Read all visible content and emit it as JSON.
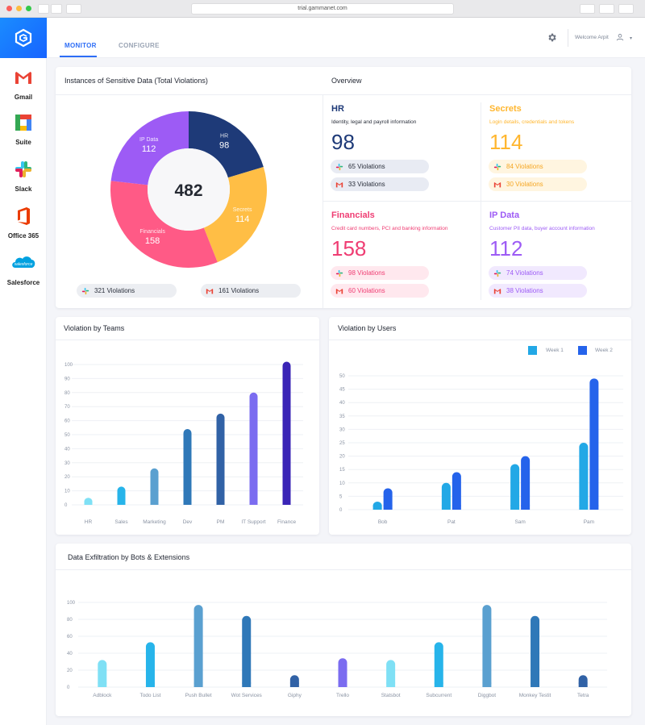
{
  "browser": {
    "url": "trial.gammanet.com"
  },
  "sidebar": {
    "apps": [
      {
        "label": "Gmail",
        "icon": "gmail-icon"
      },
      {
        "label": "Suite",
        "icon": "gsuite-icon"
      },
      {
        "label": "Slack",
        "icon": "slack-icon"
      },
      {
        "label": "Office 365",
        "icon": "office365-icon"
      },
      {
        "label": "Salesforce",
        "icon": "salesforce-icon"
      }
    ],
    "salesforce_logo_text": "salesforce"
  },
  "header": {
    "tabs": [
      {
        "label": "MONITOR",
        "active": true
      },
      {
        "label": "CONFIGURE",
        "active": false
      }
    ],
    "welcome": "Welcome Arpit",
    "caret": "▾"
  },
  "sensitive": {
    "title": "Instances of Sensitive Data (Total Violations)",
    "total": "482",
    "segments": [
      {
        "name": "HR",
        "value": 98,
        "color": "#1e3a78"
      },
      {
        "name": "Secrets",
        "value": 114,
        "color": "#ffbe45"
      },
      {
        "name": "Financials",
        "value": 158,
        "color": "#ff5a86"
      },
      {
        "name": "IP Data",
        "value": 112,
        "color": "#9d5bf5"
      }
    ],
    "pills": [
      {
        "icon": "slack-icon",
        "text": "321 Violations"
      },
      {
        "icon": "gmail-icon",
        "text": "161 Violations"
      }
    ]
  },
  "overview": {
    "title": "Overview",
    "categories": [
      {
        "name": "HR",
        "desc": "Identity, legal and payroll information",
        "total": "98",
        "color": "#1e3a78",
        "pill_bg": "#e8ebf3",
        "pill_text": "#1e3a78",
        "slack": "65 Violations",
        "gmail": "33 Violations"
      },
      {
        "name": "Secrets",
        "desc": "Login details, credentials and tokens",
        "total": "114",
        "color": "#ffb62e",
        "pill_bg": "#fff5e0",
        "pill_text": "#f5a623",
        "slack": "84 Violations",
        "gmail": "30 Violations"
      },
      {
        "name": "Financials",
        "desc": "Credit card numbers, PCI and banking information",
        "total": "158",
        "color": "#ef3d73",
        "pill_bg": "#ffe8ee",
        "pill_text": "#ef3d73",
        "slack": "98 Violations",
        "gmail": "60 Violations"
      },
      {
        "name": "IP Data",
        "desc": "Customer PII data, buyer account information",
        "total": "112",
        "color": "#9d5bf5",
        "pill_bg": "#f1e9fe",
        "pill_text": "#9d5bf5",
        "slack": "74 Violations",
        "gmail": "38 Violations"
      }
    ]
  },
  "teams": {
    "title": "Violation by Teams",
    "chart_data": {
      "type": "bar",
      "categories": [
        "HR",
        "Sales",
        "Marketing",
        "Dev",
        "PM",
        "IT Support",
        "Finance"
      ],
      "values": [
        5,
        13,
        26,
        54,
        65,
        80,
        102
      ],
      "colors": [
        "#7fe0f5",
        "#27b4ea",
        "#5aa0d0",
        "#2f78b8",
        "#3162a6",
        "#7b6cf0",
        "#3a24b6"
      ],
      "yticks": [
        0,
        10,
        20,
        30,
        40,
        50,
        60,
        70,
        80,
        90,
        100
      ],
      "ylim": [
        0,
        100
      ]
    }
  },
  "users": {
    "title": "Violation by Users",
    "chart_data": {
      "type": "bar",
      "categories": [
        "Bob",
        "Pat",
        "Sam",
        "Pam"
      ],
      "series": [
        {
          "name": "Week 1",
          "values": [
            3,
            10,
            17,
            25
          ],
          "color": "#22a8e6"
        },
        {
          "name": "Week 2",
          "values": [
            8,
            14,
            20,
            49
          ],
          "color": "#2563eb"
        }
      ],
      "yticks": [
        0,
        5,
        10,
        15,
        20,
        25,
        30,
        35,
        40,
        45,
        50
      ],
      "ylim": [
        0,
        50
      ],
      "legend": "top-right"
    }
  },
  "bots": {
    "title": "Data Exfiltration by Bots & Extensions",
    "chart_data": {
      "type": "bar",
      "categories": [
        "Adblock",
        "Todo List",
        "Push Bullet",
        "Wot Services",
        "Giphy",
        "Trello",
        "Statsbot",
        "Subcurrent",
        "Diggbot",
        "Monkey Testit",
        "Tetra"
      ],
      "values": [
        32,
        53,
        97,
        84,
        14,
        34,
        32,
        53,
        97,
        84,
        14
      ],
      "colors": [
        "#7fe0f5",
        "#27b4ea",
        "#5aa0d0",
        "#2f78b8",
        "#3162a6",
        "#7b6cf0",
        "#7fe0f5",
        "#27b4ea",
        "#5aa0d0",
        "#2f78b8",
        "#3162a6"
      ],
      "yticks": [
        0,
        20,
        40,
        60,
        80,
        100
      ],
      "ylim": [
        0,
        100
      ]
    }
  }
}
